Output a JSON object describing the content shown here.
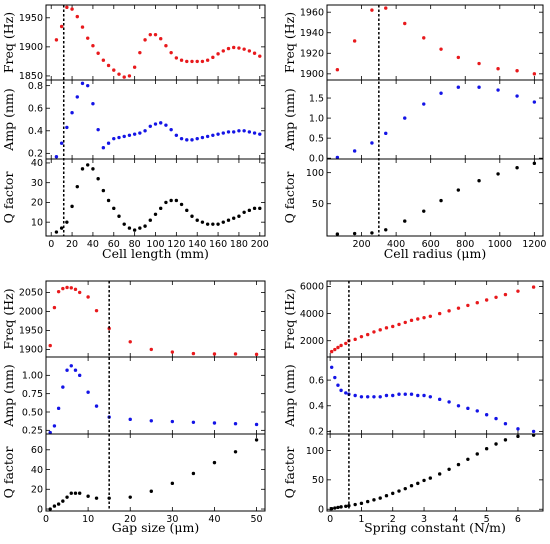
{
  "chart_data": [
    {
      "type": "scatter",
      "xlabel": "Cell length (mm)",
      "xlim": [
        -5,
        205
      ],
      "xticks": [
        0,
        20,
        40,
        60,
        80,
        100,
        120,
        140,
        160,
        180,
        200
      ],
      "marker_x": 12,
      "x": [
        5,
        10,
        15,
        20,
        25,
        30,
        35,
        40,
        45,
        50,
        55,
        60,
        65,
        70,
        75,
        80,
        85,
        90,
        95,
        100,
        105,
        110,
        115,
        120,
        125,
        130,
        135,
        140,
        145,
        150,
        155,
        160,
        165,
        170,
        175,
        180,
        185,
        190,
        195,
        200
      ],
      "panels": [
        {
          "ylabel": "Freq (Hz)",
          "ylim": [
            1843,
            1972
          ],
          "yticks": [
            1850,
            1900,
            1950
          ],
          "color": "#e8191c",
          "y": [
            1912,
            1935,
            1968,
            1965,
            1952,
            1934,
            1915,
            1902,
            1889,
            1877,
            1868,
            1860,
            1853,
            1848,
            1850,
            1865,
            1890,
            1912,
            1921,
            1921,
            1914,
            1902,
            1890,
            1881,
            1877,
            1875,
            1875,
            1875,
            1875,
            1877,
            1882,
            1888,
            1893,
            1897,
            1899,
            1898,
            1896,
            1893,
            1889,
            1884
          ]
        },
        {
          "ylabel": "Amp (nm)",
          "ylim": [
            0.15,
            0.85
          ],
          "yticks": [
            0.2,
            0.4,
            0.6,
            0.8
          ],
          "color": "#1414e6",
          "y": [
            0.17,
            0.29,
            0.43,
            0.56,
            0.7,
            0.82,
            0.8,
            0.64,
            0.41,
            0.25,
            0.29,
            0.33,
            0.34,
            0.35,
            0.36,
            0.37,
            0.38,
            0.4,
            0.44,
            0.46,
            0.47,
            0.45,
            0.41,
            0.36,
            0.33,
            0.32,
            0.32,
            0.33,
            0.34,
            0.35,
            0.36,
            0.37,
            0.38,
            0.39,
            0.39,
            0.4,
            0.4,
            0.39,
            0.38,
            0.37
          ]
        },
        {
          "ylabel": "Q factor",
          "ylim": [
            3,
            42
          ],
          "yticks": [
            10,
            20,
            30,
            40
          ],
          "color": "#000000",
          "y": [
            5,
            7,
            10,
            18,
            28,
            37,
            39,
            37,
            32,
            26,
            21,
            17,
            13,
            9,
            7,
            6,
            7,
            8,
            11,
            14,
            17,
            20,
            21,
            21,
            19,
            16,
            13,
            11,
            10,
            9,
            9,
            9,
            10,
            11,
            12,
            13,
            15,
            16,
            17,
            17
          ]
        }
      ]
    },
    {
      "type": "scatter",
      "xlabel": "Cell radius (μm)",
      "xlim": [
        0,
        1250
      ],
      "xticks": [
        200,
        400,
        600,
        800,
        1000,
        1200
      ],
      "marker_x": 300,
      "x": [
        60,
        160,
        260,
        340,
        450,
        560,
        660,
        760,
        880,
        990,
        1100,
        1200
      ],
      "panels": [
        {
          "ylabel": "Freq (Hz)",
          "ylim": [
            1894,
            1967
          ],
          "yticks": [
            1900,
            1920,
            1940,
            1960
          ],
          "color": "#e8191c",
          "y": [
            1904,
            1932,
            1962,
            1964,
            1949,
            1935,
            1924,
            1916,
            1910,
            1905,
            1903,
            1900
          ]
        },
        {
          "ylabel": "Amp (nm)",
          "ylim": [
            -0.02,
            1.95
          ],
          "yticks": [
            0.0,
            0.5,
            1.0,
            1.5
          ],
          "color": "#1414e6",
          "y": [
            0.02,
            0.18,
            0.38,
            0.62,
            1.0,
            1.35,
            1.62,
            1.77,
            1.77,
            1.7,
            1.55,
            1.4
          ]
        },
        {
          "ylabel": "Q factor",
          "ylim": [
            -2,
            122
          ],
          "yticks": [
            50,
            100
          ],
          "color": "#000000",
          "y": [
            1,
            2,
            3,
            8,
            22,
            38,
            55,
            72,
            87,
            98,
            108,
            115
          ]
        }
      ]
    },
    {
      "type": "scatter",
      "xlabel": "Gap size (μm)",
      "xlim": [
        0,
        52
      ],
      "xticks": [
        0,
        10,
        20,
        30,
        40,
        50
      ],
      "marker_x": 15,
      "x": [
        1,
        2,
        3,
        4,
        5,
        6,
        7,
        8,
        10,
        12,
        15,
        20,
        25,
        30,
        35,
        40,
        45,
        50
      ],
      "panels": [
        {
          "ylabel": "Freq (Hz)",
          "ylim": [
            1880,
            2080
          ],
          "yticks": [
            1900,
            1950,
            2000,
            2050
          ],
          "color": "#e8191c",
          "y": [
            1910,
            2010,
            2052,
            2060,
            2063,
            2062,
            2058,
            2050,
            2038,
            2002,
            1955,
            1920,
            1900,
            1893,
            1889,
            1888,
            1888,
            1887
          ]
        },
        {
          "ylabel": "Amp (nm)",
          "ylim": [
            0.2,
            1.25
          ],
          "yticks": [
            0.25,
            0.5,
            0.75,
            1.0
          ],
          "color": "#1414e6",
          "y": [
            0.22,
            0.31,
            0.55,
            0.84,
            1.07,
            1.13,
            1.07,
            1.0,
            0.77,
            0.58,
            0.43,
            0.4,
            0.38,
            0.37,
            0.36,
            0.35,
            0.34,
            0.33
          ]
        },
        {
          "ylabel": "Q factor",
          "ylim": [
            -2,
            76
          ],
          "yticks": [
            0,
            20,
            40,
            60
          ],
          "color": "#000000",
          "y": [
            0,
            3,
            5,
            8,
            12,
            16,
            16,
            16,
            13,
            11,
            11,
            12,
            18,
            26,
            36,
            47,
            58,
            70
          ]
        }
      ]
    },
    {
      "type": "scatter",
      "xlabel": "Spring constant (N/m)",
      "xlim": [
        -0.1,
        6.8
      ],
      "xticks": [
        0,
        1,
        2,
        3,
        4,
        5,
        6
      ],
      "marker_x": 0.6,
      "x": [
        0.05,
        0.15,
        0.25,
        0.35,
        0.5,
        0.6,
        0.8,
        1.0,
        1.2,
        1.4,
        1.6,
        1.8,
        2.0,
        2.2,
        2.4,
        2.6,
        2.8,
        3.0,
        3.2,
        3.5,
        3.8,
        4.1,
        4.4,
        4.7,
        5.0,
        5.3,
        5.6,
        6.0,
        6.5
      ],
      "panels": [
        {
          "ylabel": "Freq (Hz)",
          "ylim": [
            800,
            6400
          ],
          "yticks": [
            2000,
            4000,
            6000
          ],
          "color": "#e8191c",
          "y": [
            1200,
            1350,
            1500,
            1650,
            1800,
            2000,
            2100,
            2300,
            2450,
            2650,
            2800,
            2950,
            3050,
            3200,
            3350,
            3500,
            3600,
            3700,
            3800,
            4000,
            4200,
            4400,
            4600,
            4800,
            5000,
            5200,
            5400,
            5650,
            5950
          ]
        },
        {
          "ylabel": "Amp (nm)",
          "ylim": [
            0.18,
            0.78
          ],
          "yticks": [
            0.2,
            0.4,
            0.6
          ],
          "color": "#1414e6",
          "y": [
            0.7,
            0.62,
            0.56,
            0.52,
            0.5,
            0.49,
            0.48,
            0.47,
            0.47,
            0.47,
            0.47,
            0.48,
            0.48,
            0.49,
            0.49,
            0.49,
            0.48,
            0.48,
            0.47,
            0.45,
            0.43,
            0.4,
            0.38,
            0.36,
            0.33,
            0.3,
            0.26,
            0.22,
            0.2
          ]
        },
        {
          "ylabel": "Q factor",
          "ylim": [
            -3,
            128
          ],
          "yticks": [
            0,
            50,
            100
          ],
          "color": "#000000",
          "y": [
            1,
            2,
            3,
            4,
            5,
            6,
            8,
            10,
            13,
            16,
            19,
            23,
            27,
            31,
            35,
            40,
            44,
            49,
            53,
            60,
            68,
            76,
            85,
            94,
            103,
            111,
            118,
            124,
            126
          ]
        }
      ]
    }
  ]
}
